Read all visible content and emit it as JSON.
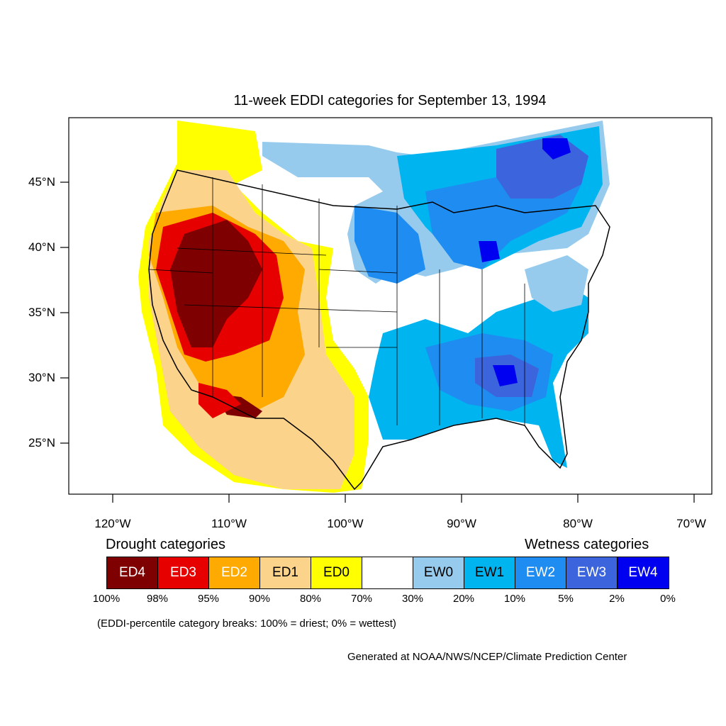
{
  "title": "11-week EDDI categories for September 13, 1994",
  "lat_labels": [
    "45°N",
    "40°N",
    "35°N",
    "30°N",
    "25°N"
  ],
  "lon_labels": [
    "120°W",
    "110°W",
    "100°W",
    "90°W",
    "80°W",
    "70°W"
  ],
  "drought_heading": "Drought categories",
  "wetness_heading": "Wetness categories",
  "categories": [
    {
      "label": "ED4",
      "color": "#7f0000",
      "text_color": "#ffffff"
    },
    {
      "label": "ED3",
      "color": "#e60000",
      "text_color": "#ffffff"
    },
    {
      "label": "ED2",
      "color": "#ffaa00",
      "text_color": "#ffffff"
    },
    {
      "label": "ED1",
      "color": "#fcd38b",
      "text_color": "#000000"
    },
    {
      "label": "ED0",
      "color": "#ffff00",
      "text_color": "#000000"
    },
    {
      "label": "",
      "color": "#ffffff",
      "text_color": "#000000"
    },
    {
      "label": "EW0",
      "color": "#96cbee",
      "text_color": "#000000"
    },
    {
      "label": "EW1",
      "color": "#00b4f0",
      "text_color": "#000000"
    },
    {
      "label": "EW2",
      "color": "#1e8cf0",
      "text_color": "#ffffff"
    },
    {
      "label": "EW3",
      "color": "#3c64dc",
      "text_color": "#ffffff"
    },
    {
      "label": "EW4",
      "color": "#0000f0",
      "text_color": "#ffffff"
    }
  ],
  "percentiles": [
    "100%",
    "98%",
    "95%",
    "90%",
    "80%",
    "70%",
    "30%",
    "20%",
    "10%",
    "5%",
    "2%",
    "0%"
  ],
  "note": "(EDDI-percentile category breaks: 100% = driest; 0% = wettest)",
  "credit": "Generated at NOAA/NWS/NCEP/Climate Prediction Center"
}
